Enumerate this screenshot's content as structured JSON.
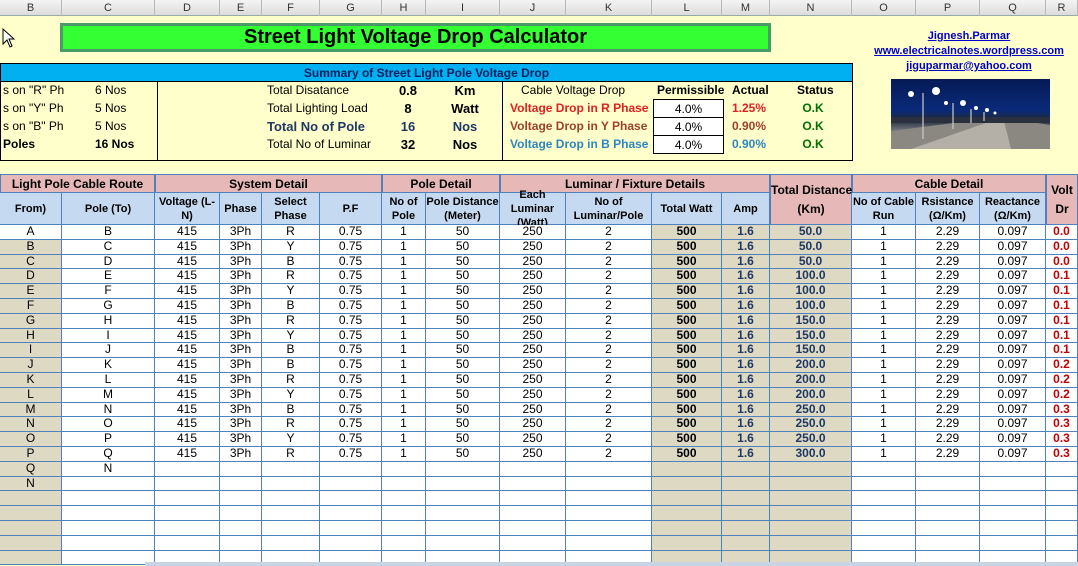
{
  "column_headers": [
    "B",
    "C",
    "D",
    "E",
    "F",
    "G",
    "H",
    "I",
    "J",
    "K",
    "L",
    "M",
    "N",
    "O",
    "P",
    "Q",
    "R"
  ],
  "title": "Street Light Voltage Drop Calculator",
  "author": {
    "name": "Jignesh.Parmar ",
    "website": "www.electricalnotes.wordpress.com",
    "email": "jiguparmar@yahoo.com"
  },
  "summary": {
    "header": "Summary of Street Light Pole Voltage Drop",
    "phase_counts": [
      {
        "label": "s on \"R\" Ph",
        "value": "6 Nos"
      },
      {
        "label": "s on \"Y\" Ph",
        "value": "5 Nos"
      },
      {
        "label": "s on \"B\" Ph",
        "value": "5 Nos"
      },
      {
        "label": " Poles",
        "value": "16 Nos"
      }
    ],
    "totals": [
      {
        "label": "Total Disatance",
        "value": "0.8",
        "unit": "Km"
      },
      {
        "label": "Total Lighting Load",
        "value": "8",
        "unit": "Watt"
      },
      {
        "label": "Total No of Pole",
        "value": "16",
        "unit": "Nos"
      },
      {
        "label": "Total No of Luminar",
        "value": "32",
        "unit": "Nos"
      }
    ],
    "drop_headers": {
      "label": "Cable Voltage Drop",
      "permissible": "Permissible",
      "actual": "Actual",
      "status": "Status"
    },
    "drops": [
      {
        "label": "Voltage Drop in R Phase",
        "permissible": "4.0%",
        "actual": "1.25%",
        "status": "O.K",
        "color": "#e02020"
      },
      {
        "label": "Voltage Drop in Y Phase",
        "permissible": "4.0%",
        "actual": "0.90%",
        "status": "O.K",
        "color": "#a0402a"
      },
      {
        "label": "Voltage Drop in B Phase",
        "permissible": "4.0%",
        "actual": "0.90%",
        "status": "O.K",
        "color": "#2e86c1"
      }
    ],
    "status_color": "#007000"
  },
  "table": {
    "groups": [
      "Light Pole Cable Route",
      "System Detail",
      "Pole Detail",
      "Luminar / Fixture Details",
      "Total Distance",
      "Cable Detail",
      "Volt"
    ],
    "total_distance_sub": "(Km)",
    "volt_sub": "Dr",
    "headers": [
      "From)",
      "Pole (To)",
      "Voltage (L-N)",
      "Phase",
      "Select Phase",
      "P.F",
      "No of Pole",
      "Pole Distance (Meter)",
      "Each Luminar (Watt)",
      "No of Luminar/Pole",
      "Total Watt",
      "Amp",
      "No of Cable Run",
      "Rsistance (Ω/Km)",
      "Reactance (Ω/Km)"
    ],
    "rows": [
      [
        "A",
        "B",
        "415",
        "3Ph",
        "R",
        "0.75",
        "1",
        "50",
        "250",
        "2",
        "500",
        "1.6",
        "50.0",
        "1",
        "2.29",
        "0.097",
        "0.0"
      ],
      [
        "B",
        "C",
        "415",
        "3Ph",
        "Y",
        "0.75",
        "1",
        "50",
        "250",
        "2",
        "500",
        "1.6",
        "50.0",
        "1",
        "2.29",
        "0.097",
        "0.0"
      ],
      [
        "C",
        "D",
        "415",
        "3Ph",
        "B",
        "0.75",
        "1",
        "50",
        "250",
        "2",
        "500",
        "1.6",
        "50.0",
        "1",
        "2.29",
        "0.097",
        "0.0"
      ],
      [
        "D",
        "E",
        "415",
        "3Ph",
        "R",
        "0.75",
        "1",
        "50",
        "250",
        "2",
        "500",
        "1.6",
        "100.0",
        "1",
        "2.29",
        "0.097",
        "0.1"
      ],
      [
        "E",
        "F",
        "415",
        "3Ph",
        "Y",
        "0.75",
        "1",
        "50",
        "250",
        "2",
        "500",
        "1.6",
        "100.0",
        "1",
        "2.29",
        "0.097",
        "0.1"
      ],
      [
        "F",
        "G",
        "415",
        "3Ph",
        "B",
        "0.75",
        "1",
        "50",
        "250",
        "2",
        "500",
        "1.6",
        "100.0",
        "1",
        "2.29",
        "0.097",
        "0.1"
      ],
      [
        "G",
        "H",
        "415",
        "3Ph",
        "R",
        "0.75",
        "1",
        "50",
        "250",
        "2",
        "500",
        "1.6",
        "150.0",
        "1",
        "2.29",
        "0.097",
        "0.1"
      ],
      [
        "H",
        "I",
        "415",
        "3Ph",
        "Y",
        "0.75",
        "1",
        "50",
        "250",
        "2",
        "500",
        "1.6",
        "150.0",
        "1",
        "2.29",
        "0.097",
        "0.1"
      ],
      [
        "I",
        "J",
        "415",
        "3Ph",
        "B",
        "0.75",
        "1",
        "50",
        "250",
        "2",
        "500",
        "1.6",
        "150.0",
        "1",
        "2.29",
        "0.097",
        "0.1"
      ],
      [
        "J",
        "K",
        "415",
        "3Ph",
        "B",
        "0.75",
        "1",
        "50",
        "250",
        "2",
        "500",
        "1.6",
        "200.0",
        "1",
        "2.29",
        "0.097",
        "0.2"
      ],
      [
        "K",
        "L",
        "415",
        "3Ph",
        "R",
        "0.75",
        "1",
        "50",
        "250",
        "2",
        "500",
        "1.6",
        "200.0",
        "1",
        "2.29",
        "0.097",
        "0.2"
      ],
      [
        "L",
        "M",
        "415",
        "3Ph",
        "Y",
        "0.75",
        "1",
        "50",
        "250",
        "2",
        "500",
        "1.6",
        "200.0",
        "1",
        "2.29",
        "0.097",
        "0.2"
      ],
      [
        "M",
        "N",
        "415",
        "3Ph",
        "B",
        "0.75",
        "1",
        "50",
        "250",
        "2",
        "500",
        "1.6",
        "250.0",
        "1",
        "2.29",
        "0.097",
        "0.3"
      ],
      [
        "N",
        "O",
        "415",
        "3Ph",
        "R",
        "0.75",
        "1",
        "50",
        "250",
        "2",
        "500",
        "1.6",
        "250.0",
        "1",
        "2.29",
        "0.097",
        "0.3"
      ],
      [
        "O",
        "P",
        "415",
        "3Ph",
        "Y",
        "0.75",
        "1",
        "50",
        "250",
        "2",
        "500",
        "1.6",
        "250.0",
        "1",
        "2.29",
        "0.097",
        "0.3"
      ],
      [
        "P",
        "Q",
        "415",
        "3Ph",
        "R",
        "0.75",
        "1",
        "50",
        "250",
        "2",
        "500",
        "1.6",
        "300.0",
        "1",
        "2.29",
        "0.097",
        "0.3"
      ],
      [
        "Q",
        "N",
        "",
        "",
        "",
        "",
        "",
        "",
        "",
        "",
        "",
        "",
        "",
        "",
        "",
        "",
        ""
      ],
      [
        "N",
        "",
        "",
        "",
        "",
        "",
        "",
        "",
        "",
        "",
        "",
        "",
        "",
        "",
        "",
        "",
        ""
      ],
      [
        "",
        "",
        "",
        "",
        "",
        "",
        "",
        "",
        "",
        "",
        "",
        "",
        "",
        "",
        "",
        "",
        ""
      ],
      [
        "",
        "",
        "",
        "",
        "",
        "",
        "",
        "",
        "",
        "",
        "",
        "",
        "",
        "",
        "",
        "",
        ""
      ],
      [
        "",
        "",
        "",
        "",
        "",
        "",
        "",
        "",
        "",
        "",
        "",
        "",
        "",
        "",
        "",
        "",
        ""
      ],
      [
        "",
        "",
        "",
        "",
        "",
        "",
        "",
        "",
        "",
        "",
        "",
        "",
        "",
        "",
        "",
        "",
        ""
      ],
      [
        "",
        "",
        "",
        "",
        "",
        "",
        "",
        "",
        "",
        "",
        "",
        "",
        "",
        "",
        "",
        "",
        ""
      ]
    ]
  }
}
